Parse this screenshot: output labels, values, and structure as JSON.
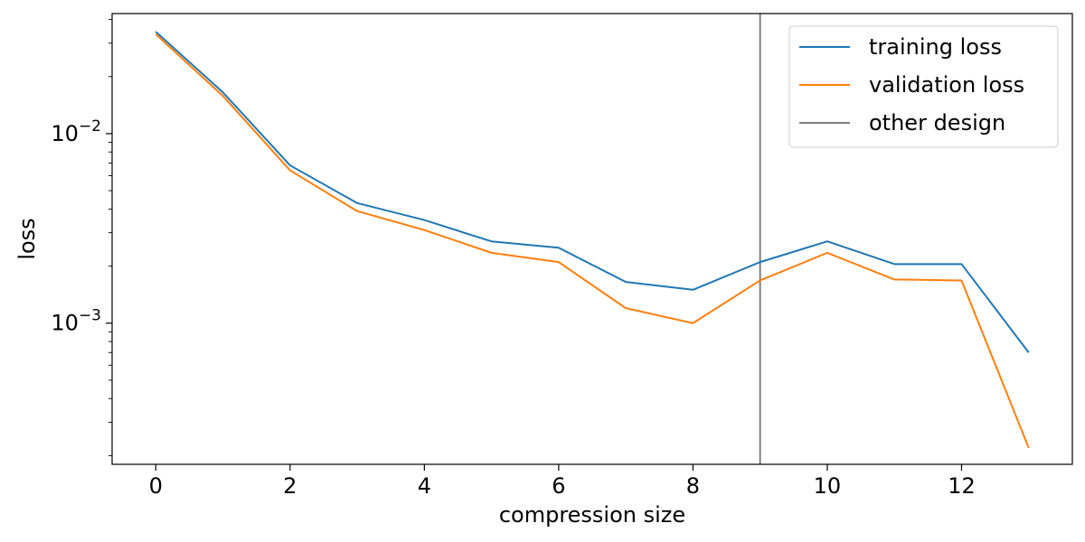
{
  "chart_data": {
    "type": "line",
    "xlabel": "compression size",
    "ylabel": "loss",
    "xlim": [
      -0.65,
      13.65
    ],
    "ylim": [
      0.00018,
      0.043
    ],
    "yscale": "log",
    "grid": false,
    "legend_position": "top-right",
    "x": [
      0,
      1,
      2,
      3,
      4,
      5,
      6,
      7,
      8,
      9,
      10,
      11,
      12,
      13
    ],
    "x_ticks": [
      {
        "value": 0,
        "label": "0"
      },
      {
        "value": 2,
        "label": "2"
      },
      {
        "value": 4,
        "label": "4"
      },
      {
        "value": 6,
        "label": "6"
      },
      {
        "value": 8,
        "label": "8"
      },
      {
        "value": 10,
        "label": "10"
      },
      {
        "value": 12,
        "label": "12"
      }
    ],
    "y_major_ticks": [
      {
        "value": 0.001,
        "base": "10",
        "exp": "−3"
      },
      {
        "value": 0.01,
        "base": "10",
        "exp": "−2"
      }
    ],
    "y_minor_ticks": [
      0.0002,
      0.0003,
      0.0004,
      0.0005,
      0.0006,
      0.0007,
      0.0008,
      0.0009,
      0.002,
      0.003,
      0.004,
      0.005,
      0.006,
      0.007,
      0.008,
      0.009,
      0.02,
      0.03,
      0.04
    ],
    "series": [
      {
        "name": "training loss",
        "color": "#1f77b4",
        "values": [
          0.0345,
          0.0165,
          0.0068,
          0.0043,
          0.0035,
          0.0027,
          0.0025,
          0.00165,
          0.0015,
          0.0021,
          0.0027,
          0.00205,
          0.00205,
          0.0007
        ]
      },
      {
        "name": "validation loss",
        "color": "#ff7f0e",
        "values": [
          0.0335,
          0.0158,
          0.0064,
          0.0039,
          0.0031,
          0.00235,
          0.0021,
          0.0012,
          0.001,
          0.00168,
          0.00235,
          0.0017,
          0.00168,
          0.00022
        ]
      }
    ],
    "vlines": [
      {
        "name": "other design",
        "x": 9,
        "color": "#7f7f7f"
      }
    ]
  }
}
